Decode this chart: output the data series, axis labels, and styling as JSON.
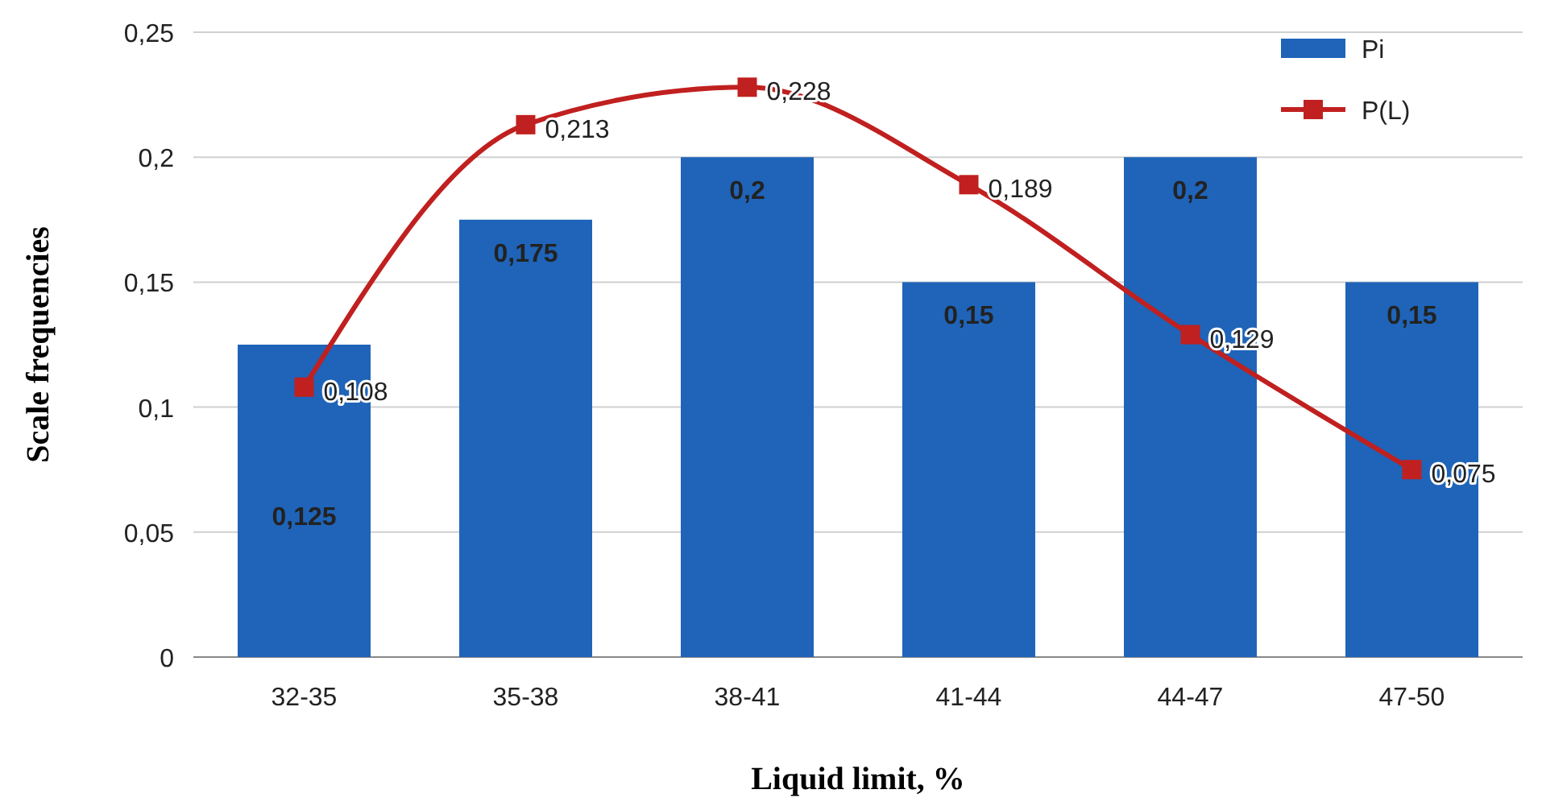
{
  "chart_data": {
    "type": "bar",
    "xlabel": "Liquid limit, %",
    "ylabel": "Scale frequencies",
    "categories": [
      "32-35",
      "35-38",
      "38-41",
      "41-44",
      "44-47",
      "47-50"
    ],
    "series": [
      {
        "name": "Pi",
        "color": "#1f64b8",
        "values": [
          0.125,
          0.175,
          0.2,
          0.15,
          0.2,
          0.15
        ],
        "value_labels": [
          "0,125",
          "0,175",
          "0,2",
          "0,15",
          "0,2",
          "0,15"
        ]
      },
      {
        "name": "P(L)",
        "type": "line",
        "color": "#c0201f",
        "marker": "square",
        "values": [
          0.108,
          0.213,
          0.228,
          0.189,
          0.129,
          0.075
        ],
        "value_labels": [
          "0,108",
          "0,213",
          "0,228",
          "0,189",
          "0,129",
          "0,075"
        ]
      }
    ],
    "ylim": [
      0,
      0.25
    ],
    "yticks": [
      0,
      {
        "value": 0.05,
        "label": "0,05"
      },
      {
        "value": 0.1,
        "label": "0,1"
      },
      {
        "value": 0.15,
        "label": "0,15"
      },
      {
        "value": 0.2,
        "label": "0,2"
      },
      {
        "value": 0.25,
        "label": "0,25"
      }
    ],
    "grid": "y",
    "legend": "top right"
  }
}
